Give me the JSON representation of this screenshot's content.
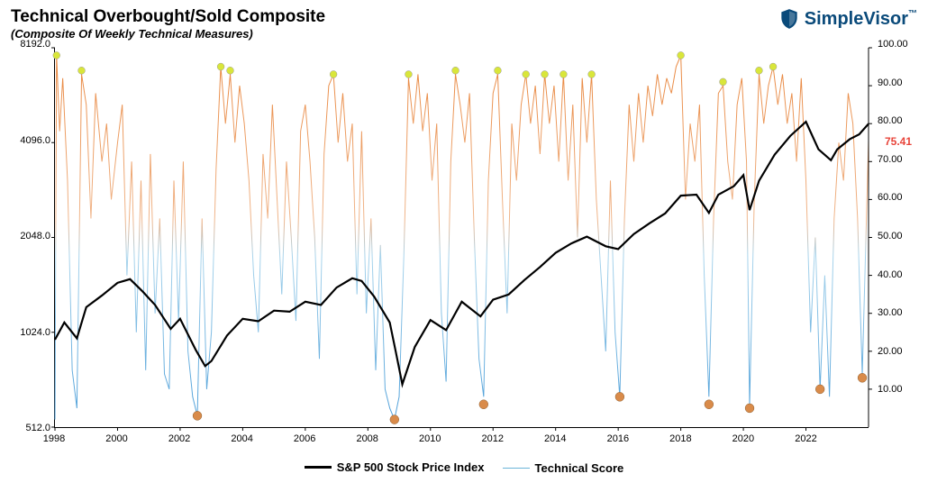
{
  "header": {
    "title": "Technical Overbought/Sold Composite",
    "subtitle": "(Composite Of Weekly Technical Measures)",
    "title_fontsize": 19,
    "subtitle_fontsize": 13,
    "logo_text": "SimpleVisor",
    "logo_trademark": "™",
    "logo_color": "#0a4a7a"
  },
  "chart": {
    "type": "dual-axis-line",
    "background": "#ffffff",
    "plot_border_color": "#000000",
    "x": {
      "min": 1998,
      "max": 2024,
      "ticks": [
        1998,
        2000,
        2002,
        2004,
        2006,
        2008,
        2010,
        2012,
        2014,
        2016,
        2018,
        2020,
        2022
      ],
      "fontsize": 11
    },
    "y_left": {
      "min": 512,
      "max": 8192,
      "scale": "log2",
      "ticks": [
        512,
        1024,
        2048,
        4096,
        8192
      ],
      "tick_labels": [
        "512.0",
        "1024.0",
        "2048.0",
        "4096.0",
        "8192.0"
      ],
      "fontsize": 11
    },
    "y_right": {
      "min": 0,
      "max": 100,
      "scale": "linear",
      "ticks": [
        10,
        20,
        30,
        40,
        50,
        60,
        70,
        80,
        90,
        100
      ],
      "tick_labels": [
        "10.00",
        "20.00",
        "30.00",
        "40.00",
        "50.00",
        "60.00",
        "70.00",
        "80.00",
        "90.00",
        "100.00"
      ],
      "fontsize": 11
    },
    "end_label": {
      "value": "75.41",
      "color": "#e8443a",
      "y": 75.41
    },
    "legend": {
      "items": [
        {
          "label": "S&P 500 Stock Price Index",
          "color": "#000000",
          "width": 3
        },
        {
          "label": "Technical Score",
          "color": "#6bb5d8",
          "width": 1.5
        }
      ]
    },
    "series_sp500": {
      "color": "#000000",
      "width": 2.2,
      "points": [
        [
          1998.0,
          970
        ],
        [
          1998.3,
          1100
        ],
        [
          1998.7,
          980
        ],
        [
          1999.0,
          1230
        ],
        [
          1999.5,
          1340
        ],
        [
          2000.0,
          1470
        ],
        [
          2000.4,
          1510
        ],
        [
          2000.8,
          1380
        ],
        [
          2001.2,
          1250
        ],
        [
          2001.7,
          1050
        ],
        [
          2002.0,
          1130
        ],
        [
          2002.5,
          900
        ],
        [
          2002.8,
          800
        ],
        [
          2003.0,
          830
        ],
        [
          2003.5,
          1000
        ],
        [
          2004.0,
          1130
        ],
        [
          2004.5,
          1110
        ],
        [
          2005.0,
          1200
        ],
        [
          2005.5,
          1190
        ],
        [
          2006.0,
          1280
        ],
        [
          2006.5,
          1250
        ],
        [
          2007.0,
          1420
        ],
        [
          2007.5,
          1520
        ],
        [
          2007.8,
          1490
        ],
        [
          2008.2,
          1330
        ],
        [
          2008.7,
          1100
        ],
        [
          2008.9,
          880
        ],
        [
          2009.1,
          700
        ],
        [
          2009.5,
          920
        ],
        [
          2010.0,
          1120
        ],
        [
          2010.5,
          1040
        ],
        [
          2011.0,
          1280
        ],
        [
          2011.6,
          1150
        ],
        [
          2012.0,
          1300
        ],
        [
          2012.5,
          1350
        ],
        [
          2013.0,
          1500
        ],
        [
          2013.5,
          1650
        ],
        [
          2014.0,
          1830
        ],
        [
          2014.5,
          1960
        ],
        [
          2015.0,
          2060
        ],
        [
          2015.6,
          1920
        ],
        [
          2016.0,
          1880
        ],
        [
          2016.5,
          2100
        ],
        [
          2017.0,
          2270
        ],
        [
          2017.5,
          2440
        ],
        [
          2018.0,
          2780
        ],
        [
          2018.5,
          2800
        ],
        [
          2018.9,
          2450
        ],
        [
          2019.2,
          2800
        ],
        [
          2019.7,
          2980
        ],
        [
          2020.0,
          3230
        ],
        [
          2020.2,
          2500
        ],
        [
          2020.5,
          3100
        ],
        [
          2021.0,
          3750
        ],
        [
          2021.5,
          4300
        ],
        [
          2022.0,
          4770
        ],
        [
          2022.4,
          3900
        ],
        [
          2022.8,
          3600
        ],
        [
          2023.0,
          3900
        ],
        [
          2023.4,
          4200
        ],
        [
          2023.7,
          4350
        ],
        [
          2024.0,
          4700
        ]
      ]
    },
    "series_technical": {
      "color_high": "#e8843a",
      "color_low": "#4a9dd8",
      "width": 1.0,
      "points": [
        [
          1998.0,
          2
        ],
        [
          1998.05,
          98
        ],
        [
          1998.15,
          78
        ],
        [
          1998.25,
          92
        ],
        [
          1998.4,
          65
        ],
        [
          1998.55,
          15
        ],
        [
          1998.7,
          5
        ],
        [
          1998.85,
          93
        ],
        [
          1999.0,
          85
        ],
        [
          1999.15,
          55
        ],
        [
          1999.3,
          88
        ],
        [
          1999.5,
          70
        ],
        [
          1999.65,
          80
        ],
        [
          1999.8,
          60
        ],
        [
          2000.0,
          75
        ],
        [
          2000.15,
          85
        ],
        [
          2000.3,
          40
        ],
        [
          2000.45,
          70
        ],
        [
          2000.6,
          25
        ],
        [
          2000.75,
          65
        ],
        [
          2000.9,
          15
        ],
        [
          2001.05,
          72
        ],
        [
          2001.2,
          30
        ],
        [
          2001.35,
          55
        ],
        [
          2001.5,
          14
        ],
        [
          2001.65,
          10
        ],
        [
          2001.8,
          65
        ],
        [
          2001.95,
          28
        ],
        [
          2002.1,
          70
        ],
        [
          2002.25,
          20
        ],
        [
          2002.4,
          8
        ],
        [
          2002.55,
          3
        ],
        [
          2002.7,
          55
        ],
        [
          2002.85,
          10
        ],
        [
          2003.0,
          25
        ],
        [
          2003.15,
          68
        ],
        [
          2003.3,
          95
        ],
        [
          2003.45,
          80
        ],
        [
          2003.6,
          93
        ],
        [
          2003.75,
          75
        ],
        [
          2003.9,
          90
        ],
        [
          2004.05,
          80
        ],
        [
          2004.2,
          65
        ],
        [
          2004.35,
          40
        ],
        [
          2004.5,
          25
        ],
        [
          2004.65,
          72
        ],
        [
          2004.8,
          55
        ],
        [
          2004.95,
          85
        ],
        [
          2005.1,
          60
        ],
        [
          2005.25,
          35
        ],
        [
          2005.4,
          70
        ],
        [
          2005.55,
          50
        ],
        [
          2005.7,
          28
        ],
        [
          2005.85,
          78
        ],
        [
          2006.0,
          85
        ],
        [
          2006.15,
          70
        ],
        [
          2006.3,
          50
        ],
        [
          2006.45,
          18
        ],
        [
          2006.6,
          72
        ],
        [
          2006.75,
          90
        ],
        [
          2006.9,
          93
        ],
        [
          2007.05,
          75
        ],
        [
          2007.2,
          88
        ],
        [
          2007.35,
          70
        ],
        [
          2007.5,
          80
        ],
        [
          2007.65,
          35
        ],
        [
          2007.8,
          78
        ],
        [
          2007.95,
          30
        ],
        [
          2008.1,
          55
        ],
        [
          2008.25,
          15
        ],
        [
          2008.4,
          48
        ],
        [
          2008.55,
          10
        ],
        [
          2008.7,
          5
        ],
        [
          2008.85,
          2
        ],
        [
          2009.0,
          8
        ],
        [
          2009.15,
          45
        ],
        [
          2009.3,
          92
        ],
        [
          2009.45,
          80
        ],
        [
          2009.6,
          93
        ],
        [
          2009.75,
          78
        ],
        [
          2009.9,
          88
        ],
        [
          2010.05,
          65
        ],
        [
          2010.2,
          80
        ],
        [
          2010.35,
          30
        ],
        [
          2010.5,
          12
        ],
        [
          2010.65,
          70
        ],
        [
          2010.8,
          93
        ],
        [
          2010.95,
          85
        ],
        [
          2011.1,
          75
        ],
        [
          2011.25,
          88
        ],
        [
          2011.4,
          50
        ],
        [
          2011.55,
          18
        ],
        [
          2011.7,
          8
        ],
        [
          2011.85,
          65
        ],
        [
          2012.0,
          88
        ],
        [
          2012.15,
          93
        ],
        [
          2012.3,
          60
        ],
        [
          2012.45,
          30
        ],
        [
          2012.6,
          80
        ],
        [
          2012.75,
          65
        ],
        [
          2012.9,
          85
        ],
        [
          2013.05,
          93
        ],
        [
          2013.2,
          80
        ],
        [
          2013.35,
          90
        ],
        [
          2013.5,
          72
        ],
        [
          2013.65,
          93
        ],
        [
          2013.8,
          80
        ],
        [
          2013.95,
          90
        ],
        [
          2014.1,
          70
        ],
        [
          2014.25,
          93
        ],
        [
          2014.4,
          65
        ],
        [
          2014.55,
          85
        ],
        [
          2014.7,
          50
        ],
        [
          2014.85,
          92
        ],
        [
          2015.0,
          75
        ],
        [
          2015.15,
          93
        ],
        [
          2015.3,
          60
        ],
        [
          2015.45,
          40
        ],
        [
          2015.6,
          20
        ],
        [
          2015.75,
          65
        ],
        [
          2015.9,
          25
        ],
        [
          2016.05,
          8
        ],
        [
          2016.2,
          55
        ],
        [
          2016.35,
          85
        ],
        [
          2016.5,
          70
        ],
        [
          2016.65,
          88
        ],
        [
          2016.8,
          75
        ],
        [
          2016.95,
          90
        ],
        [
          2017.1,
          82
        ],
        [
          2017.25,
          93
        ],
        [
          2017.4,
          85
        ],
        [
          2017.55,
          92
        ],
        [
          2017.7,
          88
        ],
        [
          2017.85,
          95
        ],
        [
          2018.0,
          98
        ],
        [
          2018.15,
          60
        ],
        [
          2018.3,
          80
        ],
        [
          2018.45,
          70
        ],
        [
          2018.6,
          85
        ],
        [
          2018.75,
          40
        ],
        [
          2018.9,
          8
        ],
        [
          2019.05,
          55
        ],
        [
          2019.2,
          88
        ],
        [
          2019.35,
          90
        ],
        [
          2019.5,
          70
        ],
        [
          2019.65,
          60
        ],
        [
          2019.8,
          85
        ],
        [
          2019.95,
          92
        ],
        [
          2020.1,
          70
        ],
        [
          2020.2,
          6
        ],
        [
          2020.35,
          60
        ],
        [
          2020.5,
          93
        ],
        [
          2020.65,
          80
        ],
        [
          2020.8,
          90
        ],
        [
          2020.95,
          95
        ],
        [
          2021.1,
          85
        ],
        [
          2021.25,
          93
        ],
        [
          2021.4,
          80
        ],
        [
          2021.55,
          88
        ],
        [
          2021.7,
          70
        ],
        [
          2021.85,
          92
        ],
        [
          2022.0,
          65
        ],
        [
          2022.15,
          25
        ],
        [
          2022.3,
          50
        ],
        [
          2022.45,
          10
        ],
        [
          2022.6,
          40
        ],
        [
          2022.75,
          8
        ],
        [
          2022.9,
          55
        ],
        [
          2023.05,
          75
        ],
        [
          2023.2,
          65
        ],
        [
          2023.35,
          88
        ],
        [
          2023.5,
          80
        ],
        [
          2023.65,
          55
        ],
        [
          2023.8,
          14
        ],
        [
          2023.95,
          60
        ],
        [
          2024.0,
          75.41
        ]
      ]
    },
    "markers_top": {
      "color": "#d9e63a",
      "radius": 4,
      "points": [
        [
          1998.05,
          98
        ],
        [
          1998.85,
          94
        ],
        [
          2003.3,
          95
        ],
        [
          2003.6,
          94
        ],
        [
          2006.9,
          93
        ],
        [
          2009.3,
          93
        ],
        [
          2010.8,
          94
        ],
        [
          2012.15,
          94
        ],
        [
          2013.05,
          93
        ],
        [
          2013.65,
          93
        ],
        [
          2014.25,
          93
        ],
        [
          2015.15,
          93
        ],
        [
          2018.0,
          98
        ],
        [
          2019.35,
          91
        ],
        [
          2020.5,
          94
        ],
        [
          2020.95,
          95
        ]
      ]
    },
    "markers_bottom": {
      "color": "#d98b4a",
      "radius": 5,
      "points": [
        [
          2002.55,
          3
        ],
        [
          2008.85,
          2
        ],
        [
          2011.7,
          6
        ],
        [
          2016.05,
          8
        ],
        [
          2018.9,
          6
        ],
        [
          2020.2,
          5
        ],
        [
          2022.45,
          10
        ],
        [
          2023.8,
          13
        ]
      ]
    }
  }
}
